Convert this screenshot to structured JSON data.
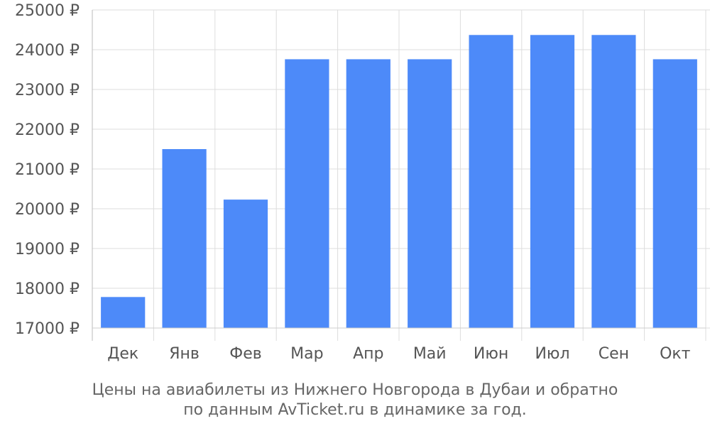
{
  "chart_data": {
    "type": "bar",
    "categories": [
      "Дек",
      "Янв",
      "Фев",
      "Мар",
      "Апр",
      "Май",
      "Июн",
      "Июл",
      "Сен",
      "Окт"
    ],
    "values": [
      17780,
      21500,
      20230,
      23760,
      23760,
      23760,
      24370,
      24370,
      24370,
      23760
    ],
    "ylim": [
      17000,
      25000
    ],
    "yticks": [
      17000,
      18000,
      19000,
      20000,
      21000,
      22000,
      23000,
      24000,
      25000
    ],
    "y_tick_suffix": " ₽",
    "grid": true,
    "bar_color": "#4d8af9",
    "caption_lines": [
      "Цены на авиабилеты из Нижнего Новгорода в Дубаи и обратно",
      "по данным AvTicket.ru в динамике за год."
    ]
  }
}
